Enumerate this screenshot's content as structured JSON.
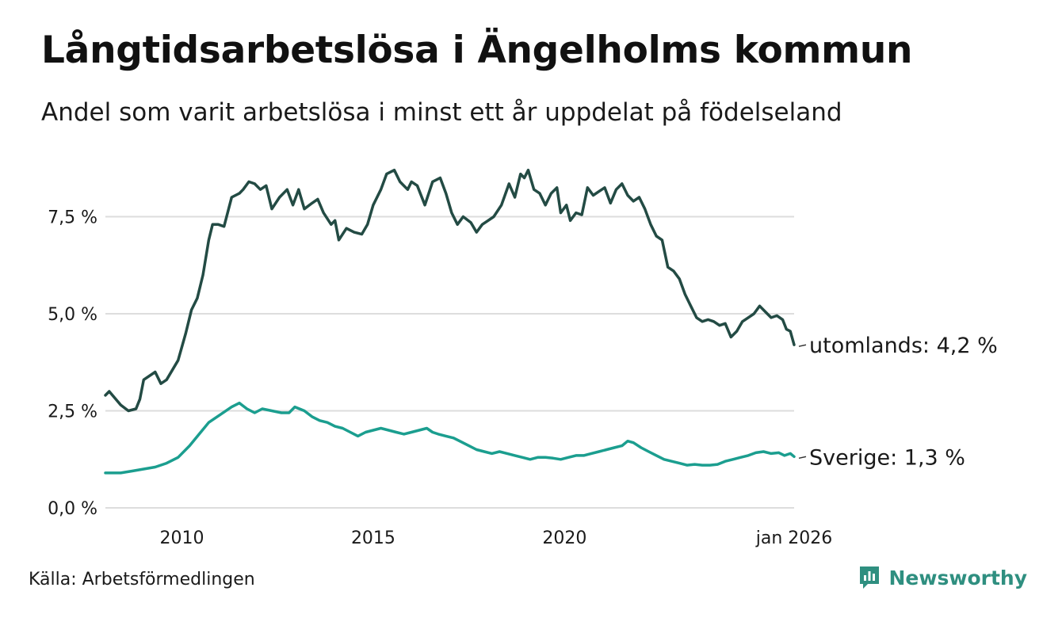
{
  "title": "Långtidsarbetslösa i Ängelholms kommun",
  "subtitle": "Andel som varit arbetslösa i minst ett år uppdelat på födelseland",
  "source": "Källa: Arbetsförmedlingen",
  "brand": "Newsworthy",
  "colors": {
    "utomlands": "#234b44",
    "sverige": "#1b9e8f",
    "grid": "#dddddd",
    "brand": "#2f8f80"
  },
  "chart_data": {
    "type": "line",
    "title": "Långtidsarbetslösa i Ängelholms kommun",
    "xlabel": "",
    "ylabel": "",
    "x_range": [
      2008.0,
      2026.0
    ],
    "ylim": [
      0,
      8.9
    ],
    "y_ticks": [
      0,
      2.5,
      5.0,
      7.5
    ],
    "y_tick_labels": [
      "0,0 %",
      "2,5 %",
      "5,0 %",
      "7,5 %"
    ],
    "x_ticks": [
      2010,
      2015,
      2020,
      2026
    ],
    "x_tick_labels": [
      "2010",
      "2015",
      "2020",
      "jan 2026"
    ],
    "series": [
      {
        "name": "utomlands",
        "label": "utomlands: 4,2 %",
        "points": [
          [
            2008.0,
            2.9
          ],
          [
            2008.1,
            3.0
          ],
          [
            2008.4,
            2.65
          ],
          [
            2008.6,
            2.5
          ],
          [
            2008.8,
            2.55
          ],
          [
            2008.9,
            2.8
          ],
          [
            2009.0,
            3.3
          ],
          [
            2009.3,
            3.5
          ],
          [
            2009.45,
            3.2
          ],
          [
            2009.6,
            3.3
          ],
          [
            2009.9,
            3.8
          ],
          [
            2010.1,
            4.5
          ],
          [
            2010.25,
            5.1
          ],
          [
            2010.4,
            5.4
          ],
          [
            2010.55,
            6.0
          ],
          [
            2010.7,
            6.9
          ],
          [
            2010.8,
            7.3
          ],
          [
            2010.95,
            7.3
          ],
          [
            2011.1,
            7.25
          ],
          [
            2011.3,
            8.0
          ],
          [
            2011.5,
            8.1
          ],
          [
            2011.6,
            8.2
          ],
          [
            2011.75,
            8.4
          ],
          [
            2011.9,
            8.35
          ],
          [
            2012.05,
            8.2
          ],
          [
            2012.2,
            8.3
          ],
          [
            2012.35,
            7.7
          ],
          [
            2012.55,
            8.0
          ],
          [
            2012.75,
            8.2
          ],
          [
            2012.9,
            7.8
          ],
          [
            2013.05,
            8.2
          ],
          [
            2013.2,
            7.7
          ],
          [
            2013.4,
            7.85
          ],
          [
            2013.55,
            7.95
          ],
          [
            2013.7,
            7.6
          ],
          [
            2013.9,
            7.3
          ],
          [
            2014.0,
            7.4
          ],
          [
            2014.1,
            6.9
          ],
          [
            2014.3,
            7.2
          ],
          [
            2014.5,
            7.1
          ],
          [
            2014.7,
            7.05
          ],
          [
            2014.85,
            7.3
          ],
          [
            2015.0,
            7.8
          ],
          [
            2015.2,
            8.2
          ],
          [
            2015.35,
            8.6
          ],
          [
            2015.55,
            8.7
          ],
          [
            2015.7,
            8.4
          ],
          [
            2015.9,
            8.2
          ],
          [
            2016.0,
            8.4
          ],
          [
            2016.15,
            8.3
          ],
          [
            2016.35,
            7.8
          ],
          [
            2016.55,
            8.4
          ],
          [
            2016.75,
            8.5
          ],
          [
            2016.9,
            8.1
          ],
          [
            2017.05,
            7.6
          ],
          [
            2017.2,
            7.3
          ],
          [
            2017.35,
            7.5
          ],
          [
            2017.55,
            7.35
          ],
          [
            2017.7,
            7.1
          ],
          [
            2017.85,
            7.3
          ],
          [
            2018.0,
            7.4
          ],
          [
            2018.15,
            7.5
          ],
          [
            2018.35,
            7.8
          ],
          [
            2018.55,
            8.35
          ],
          [
            2018.7,
            8.0
          ],
          [
            2018.85,
            8.6
          ],
          [
            2018.95,
            8.5
          ],
          [
            2019.05,
            8.7
          ],
          [
            2019.2,
            8.2
          ],
          [
            2019.35,
            8.1
          ],
          [
            2019.5,
            7.8
          ],
          [
            2019.65,
            8.1
          ],
          [
            2019.8,
            8.25
          ],
          [
            2019.9,
            7.6
          ],
          [
            2020.05,
            7.8
          ],
          [
            2020.15,
            7.4
          ],
          [
            2020.3,
            7.6
          ],
          [
            2020.45,
            7.55
          ],
          [
            2020.6,
            8.25
          ],
          [
            2020.75,
            8.05
          ],
          [
            2020.9,
            8.15
          ],
          [
            2021.05,
            8.25
          ],
          [
            2021.2,
            7.85
          ],
          [
            2021.35,
            8.2
          ],
          [
            2021.5,
            8.35
          ],
          [
            2021.65,
            8.05
          ],
          [
            2021.8,
            7.9
          ],
          [
            2021.95,
            8.0
          ],
          [
            2022.1,
            7.7
          ],
          [
            2022.25,
            7.3
          ],
          [
            2022.4,
            7.0
          ],
          [
            2022.55,
            6.9
          ],
          [
            2022.7,
            6.2
          ],
          [
            2022.85,
            6.1
          ],
          [
            2023.0,
            5.9
          ],
          [
            2023.15,
            5.5
          ],
          [
            2023.3,
            5.2
          ],
          [
            2023.45,
            4.9
          ],
          [
            2023.6,
            4.8
          ],
          [
            2023.75,
            4.85
          ],
          [
            2023.9,
            4.8
          ],
          [
            2024.05,
            4.7
          ],
          [
            2024.2,
            4.75
          ],
          [
            2024.35,
            4.4
          ],
          [
            2024.5,
            4.55
          ],
          [
            2024.65,
            4.8
          ],
          [
            2024.8,
            4.9
          ],
          [
            2024.95,
            5.0
          ],
          [
            2025.1,
            5.2
          ],
          [
            2025.25,
            5.05
          ],
          [
            2025.4,
            4.9
          ],
          [
            2025.55,
            4.95
          ],
          [
            2025.7,
            4.85
          ],
          [
            2025.8,
            4.6
          ],
          [
            2025.9,
            4.55
          ],
          [
            2026.0,
            4.2
          ]
        ]
      },
      {
        "name": "Sverige",
        "label": "Sverige: 1,3 %",
        "points": [
          [
            2008.0,
            0.9
          ],
          [
            2008.4,
            0.9
          ],
          [
            2008.7,
            0.95
          ],
          [
            2009.0,
            1.0
          ],
          [
            2009.3,
            1.05
          ],
          [
            2009.6,
            1.15
          ],
          [
            2009.9,
            1.3
          ],
          [
            2010.2,
            1.6
          ],
          [
            2010.45,
            1.9
          ],
          [
            2010.7,
            2.2
          ],
          [
            2011.0,
            2.4
          ],
          [
            2011.3,
            2.6
          ],
          [
            2011.5,
            2.7
          ],
          [
            2011.7,
            2.55
          ],
          [
            2011.9,
            2.45
          ],
          [
            2012.1,
            2.55
          ],
          [
            2012.35,
            2.5
          ],
          [
            2012.6,
            2.45
          ],
          [
            2012.8,
            2.45
          ],
          [
            2012.95,
            2.6
          ],
          [
            2013.2,
            2.5
          ],
          [
            2013.4,
            2.35
          ],
          [
            2013.6,
            2.25
          ],
          [
            2013.8,
            2.2
          ],
          [
            2014.0,
            2.1
          ],
          [
            2014.2,
            2.05
          ],
          [
            2014.4,
            1.95
          ],
          [
            2014.6,
            1.85
          ],
          [
            2014.8,
            1.95
          ],
          [
            2015.0,
            2.0
          ],
          [
            2015.2,
            2.05
          ],
          [
            2015.4,
            2.0
          ],
          [
            2015.6,
            1.95
          ],
          [
            2015.8,
            1.9
          ],
          [
            2016.0,
            1.95
          ],
          [
            2016.2,
            2.0
          ],
          [
            2016.4,
            2.05
          ],
          [
            2016.55,
            1.95
          ],
          [
            2016.7,
            1.9
          ],
          [
            2016.9,
            1.85
          ],
          [
            2017.1,
            1.8
          ],
          [
            2017.3,
            1.7
          ],
          [
            2017.5,
            1.6
          ],
          [
            2017.7,
            1.5
          ],
          [
            2017.9,
            1.45
          ],
          [
            2018.1,
            1.4
          ],
          [
            2018.3,
            1.45
          ],
          [
            2018.5,
            1.4
          ],
          [
            2018.7,
            1.35
          ],
          [
            2018.9,
            1.3
          ],
          [
            2019.1,
            1.25
          ],
          [
            2019.3,
            1.3
          ],
          [
            2019.5,
            1.3
          ],
          [
            2019.7,
            1.28
          ],
          [
            2019.9,
            1.25
          ],
          [
            2020.1,
            1.3
          ],
          [
            2020.3,
            1.35
          ],
          [
            2020.5,
            1.35
          ],
          [
            2020.7,
            1.4
          ],
          [
            2020.9,
            1.45
          ],
          [
            2021.1,
            1.5
          ],
          [
            2021.3,
            1.55
          ],
          [
            2021.5,
            1.6
          ],
          [
            2021.65,
            1.72
          ],
          [
            2021.8,
            1.68
          ],
          [
            2022.0,
            1.55
          ],
          [
            2022.2,
            1.45
          ],
          [
            2022.4,
            1.35
          ],
          [
            2022.6,
            1.25
          ],
          [
            2022.8,
            1.2
          ],
          [
            2023.0,
            1.15
          ],
          [
            2023.2,
            1.1
          ],
          [
            2023.4,
            1.12
          ],
          [
            2023.6,
            1.1
          ],
          [
            2023.8,
            1.1
          ],
          [
            2024.0,
            1.12
          ],
          [
            2024.2,
            1.2
          ],
          [
            2024.4,
            1.25
          ],
          [
            2024.6,
            1.3
          ],
          [
            2024.8,
            1.35
          ],
          [
            2025.0,
            1.42
          ],
          [
            2025.2,
            1.45
          ],
          [
            2025.4,
            1.4
          ],
          [
            2025.6,
            1.42
          ],
          [
            2025.75,
            1.35
          ],
          [
            2025.9,
            1.4
          ],
          [
            2026.0,
            1.32
          ]
        ]
      }
    ]
  }
}
